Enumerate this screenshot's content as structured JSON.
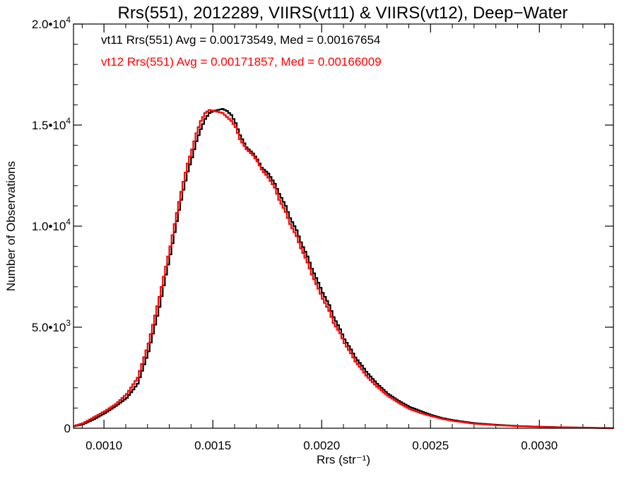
{
  "chart_data": {
    "type": "line",
    "title": "Rrs(551), 2012289, VIIRS(vt11) & VIIRS(vt12), Deep−Water",
    "xlabel": "Rrs (str⁻¹)",
    "ylabel": "Number of Observations",
    "xlim": [
      0.00086,
      0.00334
    ],
    "ylim": [
      0,
      20000
    ],
    "x_ticks": [
      {
        "value": 0.001,
        "label": "0.0010"
      },
      {
        "value": 0.0015,
        "label": "0.0015"
      },
      {
        "value": 0.002,
        "label": "0.0020"
      },
      {
        "value": 0.0025,
        "label": "0.0025"
      },
      {
        "value": 0.003,
        "label": "0.0030"
      }
    ],
    "y_ticks": [
      {
        "value": 0,
        "label": "0"
      },
      {
        "value": 5000,
        "label": "5.0•103"
      },
      {
        "value": 10000,
        "label": "1.0•104"
      },
      {
        "value": 15000,
        "label": "1.5•104"
      },
      {
        "value": 20000,
        "label": "2.0•104"
      }
    ],
    "y_tick_parts": [
      {
        "mantissa": "",
        "exp": ""
      },
      {
        "mantissa": "5.0•10",
        "exp": "3"
      },
      {
        "mantissa": "1.0•10",
        "exp": "4"
      },
      {
        "mantissa": "1.5•10",
        "exp": "4"
      },
      {
        "mantissa": "2.0•10",
        "exp": "4"
      }
    ],
    "grid": false,
    "series": [
      {
        "name": "vt11",
        "color": "#000000",
        "legend": "vt11 Rrs(551) Avg = 0.00173549, Med = 0.00167654",
        "x": [
          0.00086,
          0.0009,
          0.00095,
          0.001,
          0.00105,
          0.0011,
          0.00115,
          0.0012,
          0.00125,
          0.00128,
          0.0013,
          0.00132,
          0.00134,
          0.00136,
          0.00138,
          0.0014,
          0.00142,
          0.00144,
          0.00146,
          0.00148,
          0.0015,
          0.00152,
          0.00154,
          0.00156,
          0.00158,
          0.0016,
          0.00162,
          0.00165,
          0.00168,
          0.0017,
          0.00172,
          0.00175,
          0.00178,
          0.0018,
          0.00183,
          0.00185,
          0.00188,
          0.0019,
          0.00193,
          0.00195,
          0.00198,
          0.002,
          0.00203,
          0.00205,
          0.00208,
          0.0021,
          0.00213,
          0.00215,
          0.00218,
          0.0022,
          0.00225,
          0.0023,
          0.00235,
          0.0024,
          0.00245,
          0.0025,
          0.00255,
          0.0026,
          0.00265,
          0.0027,
          0.0028,
          0.0029,
          0.003,
          0.0031,
          0.0032,
          0.00334
        ],
        "y": [
          100,
          200,
          450,
          750,
          1100,
          1500,
          2200,
          3800,
          6000,
          7600,
          8600,
          9700,
          10800,
          11800,
          12700,
          13400,
          14200,
          14800,
          15300,
          15600,
          15700,
          15750,
          15800,
          15700,
          15500,
          15100,
          14500,
          13900,
          13600,
          13300,
          12900,
          12600,
          12100,
          11600,
          11000,
          10400,
          9800,
          9200,
          8500,
          7900,
          7200,
          6700,
          6100,
          5500,
          4900,
          4400,
          3900,
          3500,
          3100,
          2800,
          2200,
          1700,
          1350,
          1050,
          850,
          650,
          500,
          400,
          320,
          250,
          170,
          110,
          75,
          50,
          30,
          0
        ]
      },
      {
        "name": "vt12",
        "color": "#ff0000",
        "legend": "vt12 Rrs(551) Avg = 0.00171857, Med = 0.00166009",
        "x": [
          0.00086,
          0.0009,
          0.00095,
          0.001,
          0.00105,
          0.0011,
          0.00115,
          0.0012,
          0.00125,
          0.00128,
          0.0013,
          0.00132,
          0.00134,
          0.00136,
          0.00138,
          0.0014,
          0.00142,
          0.00144,
          0.00146,
          0.00148,
          0.0015,
          0.00152,
          0.00154,
          0.00156,
          0.00158,
          0.0016,
          0.00162,
          0.00165,
          0.00168,
          0.0017,
          0.00172,
          0.00175,
          0.00178,
          0.0018,
          0.00183,
          0.00185,
          0.00188,
          0.0019,
          0.00193,
          0.00195,
          0.00198,
          0.002,
          0.00203,
          0.00205,
          0.00208,
          0.0021,
          0.00213,
          0.00215,
          0.00218,
          0.0022,
          0.00225,
          0.0023,
          0.00235,
          0.0024,
          0.00245,
          0.0025,
          0.00255,
          0.0026,
          0.00265,
          0.0027,
          0.0028,
          0.0029,
          0.003,
          0.0031,
          0.0032,
          0.00334
        ],
        "y": [
          120,
          250,
          550,
          850,
          1200,
          1700,
          2500,
          4200,
          6500,
          8000,
          9000,
          10100,
          11200,
          12200,
          13100,
          13800,
          14600,
          15200,
          15600,
          15750,
          15700,
          15650,
          15600,
          15400,
          15200,
          14900,
          14300,
          13800,
          13500,
          13200,
          12800,
          12400,
          11900,
          11300,
          10700,
          10100,
          9500,
          8900,
          8200,
          7600,
          6900,
          6400,
          5800,
          5200,
          4700,
          4200,
          3700,
          3300,
          2900,
          2600,
          2050,
          1600,
          1250,
          950,
          750,
          600,
          460,
          360,
          290,
          220,
          150,
          100,
          65,
          45,
          25,
          0
        ]
      }
    ]
  }
}
